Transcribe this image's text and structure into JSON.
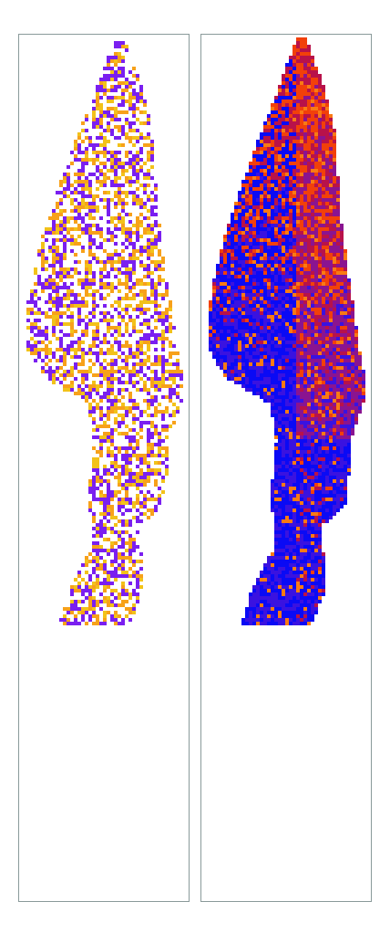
{
  "panels": [
    {
      "id": "pattern-panel",
      "palette": [
        "#f7a11a",
        "#7a1ff0",
        "#f2c21a"
      ]
    },
    {
      "id": "heatmap-panel",
      "palette": [
        "#0a0af5",
        "#3a12e0",
        "#8a1490",
        "#b8124a",
        "#f2400a",
        "#f97a14"
      ]
    }
  ]
}
